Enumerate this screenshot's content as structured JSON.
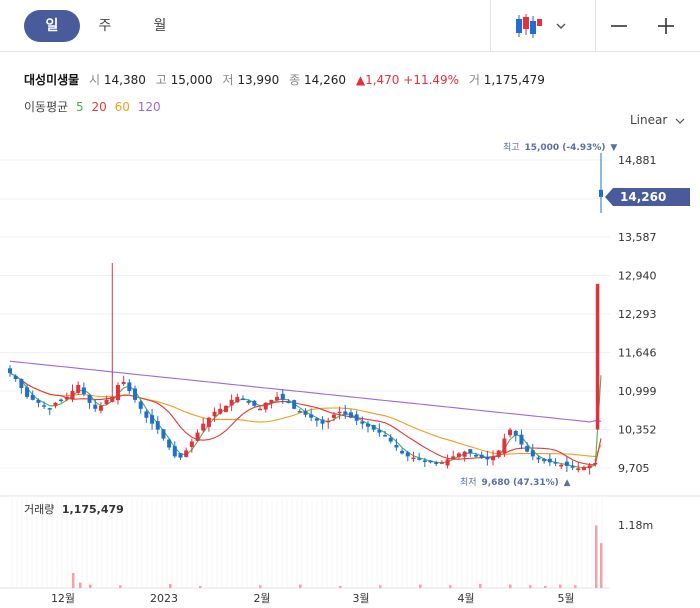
{
  "tabs": [
    {
      "label": "일",
      "active": true
    },
    {
      "label": "주",
      "active": false
    },
    {
      "label": "월",
      "active": false
    }
  ],
  "toolbar": {
    "chart_type_icon": "candlestick-icon",
    "dropdown_icon": "chevron-down-icon",
    "minus_icon": "minus-icon",
    "plus_icon": "plus-icon"
  },
  "stock": {
    "name": "대성미생물",
    "open_label": "시",
    "open": "14,380",
    "high_label": "고",
    "high": "15,000",
    "low_label": "저",
    "low": "13,990",
    "close_label": "종",
    "close": "14,260",
    "change": "1,470",
    "change_pct": "+11.49%",
    "volume_label": "거",
    "volume": "1,175,479"
  },
  "moving_average": {
    "label": "이동평균",
    "lines": [
      {
        "period": "5",
        "color": "#4caf50"
      },
      {
        "period": "20",
        "color": "#e53935"
      },
      {
        "period": "60",
        "color": "#f59b23"
      },
      {
        "period": "120",
        "color": "#9c6ade"
      }
    ]
  },
  "scale_label": "Linear",
  "chart_data": {
    "type": "candlestick",
    "y_ticks": [
      "14,881",
      "13,587",
      "12,940",
      "12,293",
      "11,646",
      "10,999",
      "10,352",
      "9,705"
    ],
    "ylim": [
      9500,
      15200
    ],
    "x_labels": [
      "12월",
      "2023",
      "2월",
      "3월",
      "4월",
      "5월"
    ],
    "current_price_label": "14,260",
    "current_price": 14260,
    "high_annotation": {
      "label": "최고",
      "value": "15,000 (-4.93%)",
      "arrow": "▼"
    },
    "low_annotation": {
      "label": "최저",
      "value": "9,680 (47.31%)",
      "arrow": "▲"
    },
    "volume_label": "거래량",
    "volume_value": "1,175,479",
    "volume_axis_tick": "1.18m",
    "up_color": "#e5303e",
    "down_color": "#1e6fd0",
    "ma120_color": "#9c6ade",
    "ma60_color": "#f59b23",
    "ma20_color": "#e53935",
    "ma5_color": "#4caf50",
    "price_path": [
      11300,
      11200,
      11050,
      10900,
      10850,
      10800,
      10750,
      10700,
      10800,
      10850,
      10900,
      11000,
      11100,
      10950,
      10800,
      10700,
      10750,
      10850,
      10900,
      11100,
      11150,
      11000,
      10850,
      10700,
      10550,
      10450,
      10350,
      10200,
      10050,
      9900,
      9880,
      10000,
      10150,
      10300,
      10450,
      10550,
      10650,
      10700,
      10750,
      10850,
      10900,
      10850,
      10800,
      10750,
      10700,
      10800,
      10850,
      10900,
      10850,
      10800,
      10700,
      10650,
      10600,
      10550,
      10500,
      10450,
      10500,
      10600,
      10650,
      10600,
      10550,
      10500,
      10450,
      10400,
      10350,
      10300,
      10250,
      10150,
      10050,
      9950,
      9900,
      9880,
      9850,
      9820,
      9800,
      9780,
      9800,
      9850,
      9900,
      9950,
      9980,
      9950,
      9900,
      9880,
      9850,
      9900,
      10000,
      10200,
      10350,
      10250,
      10100,
      9980,
      9900,
      9850,
      9820,
      9800,
      9780,
      9760,
      9740,
      9720,
      9700,
      9720,
      9750,
      9790,
      14260
    ],
    "volume_bars": [
      0.22,
      0.08,
      0.05,
      0.04,
      0.06,
      0.03,
      0.04,
      0.05,
      0.03,
      0.04,
      0.05,
      0.04,
      0.06,
      0.05,
      0.04,
      0.03,
      0.05,
      0.04,
      0.92,
      0.66
    ]
  }
}
